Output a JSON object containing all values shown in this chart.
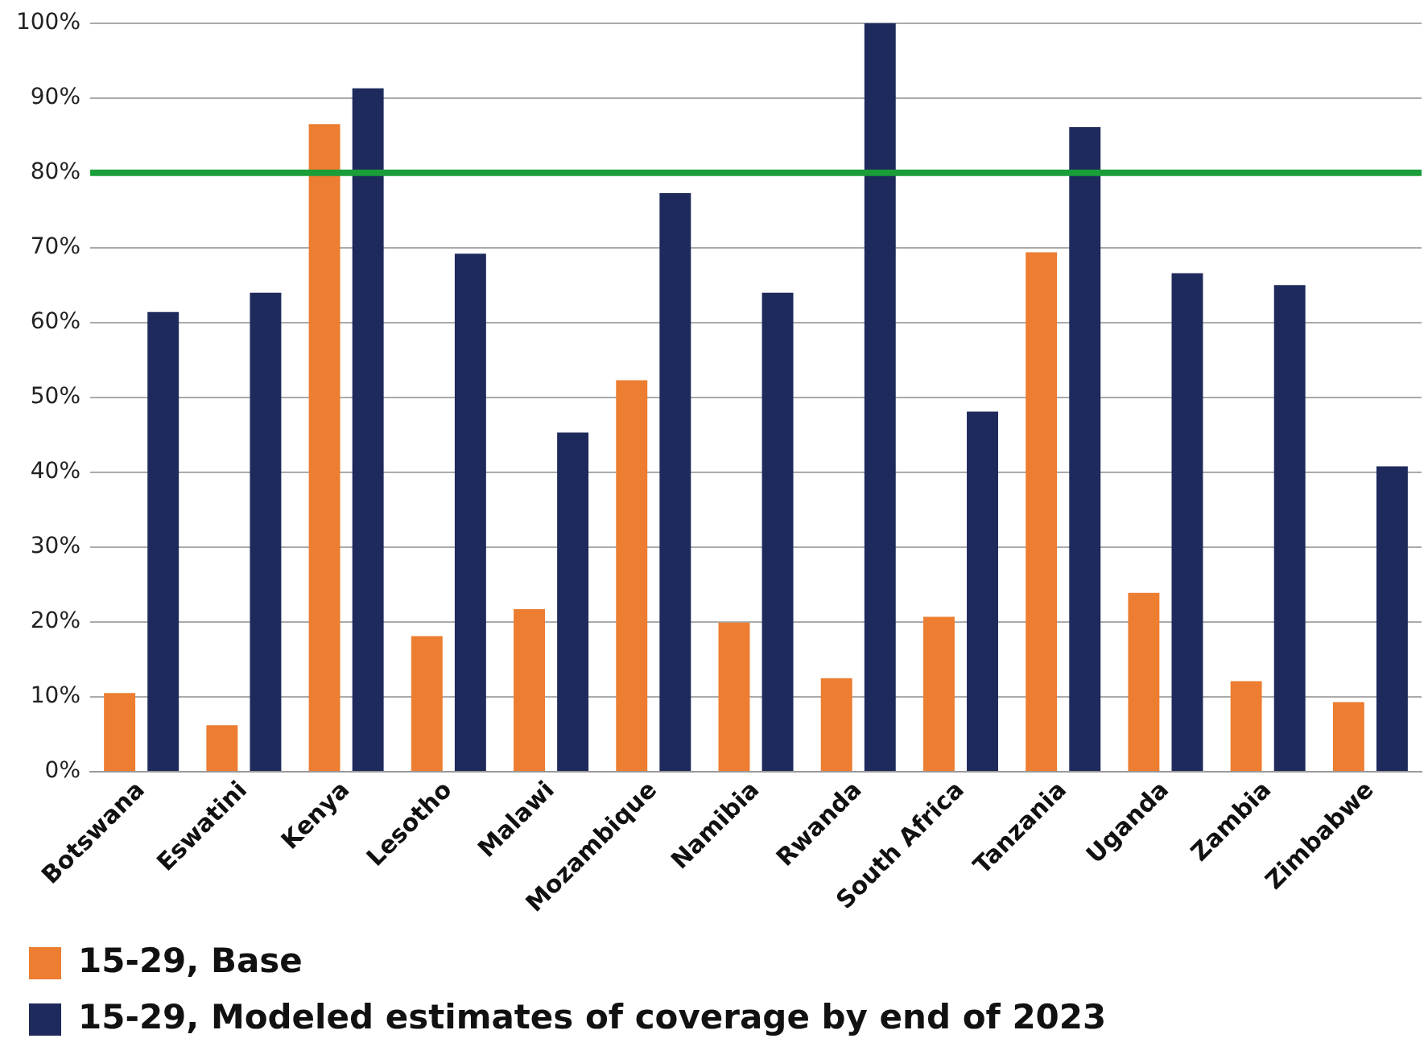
{
  "chart_data": {
    "type": "bar",
    "categories": [
      "Botswana",
      "Eswatini",
      "Kenya",
      "Lesotho",
      "Malawi",
      "Mozambique",
      "Namibia",
      "Rwanda",
      "South Africa",
      "Tanzania",
      "Uganda",
      "Zambia",
      "Zimbabwe"
    ],
    "series": [
      {
        "name": "15-29, Base",
        "color": "#ed7d31",
        "values": [
          10.5,
          6.2,
          86.5,
          18.1,
          21.7,
          52.3,
          19.9,
          12.5,
          20.7,
          69.4,
          23.9,
          12.1,
          9.3
        ]
      },
      {
        "name": "15-29, Modeled estimates of coverage by end of 2023",
        "color": "#1f2a5c",
        "values": [
          61.4,
          64.0,
          91.3,
          69.2,
          45.3,
          77.3,
          64.0,
          100,
          48.1,
          86.1,
          66.6,
          65.0,
          40.8
        ]
      }
    ],
    "ylim": [
      0,
      100
    ],
    "yticks": [
      {
        "value": 0,
        "label": "0%"
      },
      {
        "value": 10,
        "label": "10%"
      },
      {
        "value": 20,
        "label": "20%"
      },
      {
        "value": 30,
        "label": "30%"
      },
      {
        "value": 40,
        "label": "40%"
      },
      {
        "value": 50,
        "label": "50%"
      },
      {
        "value": 60,
        "label": "60%"
      },
      {
        "value": 70,
        "label": "70%"
      },
      {
        "value": 80,
        "label": "80%"
      },
      {
        "value": 90,
        "label": "90%"
      },
      {
        "value": 100,
        "label": "100%"
      }
    ],
    "ref_lines": [
      {
        "axis": "y",
        "value": 80,
        "color": "#1a9e3a"
      }
    ],
    "grid": "y",
    "legend": "bottom"
  }
}
